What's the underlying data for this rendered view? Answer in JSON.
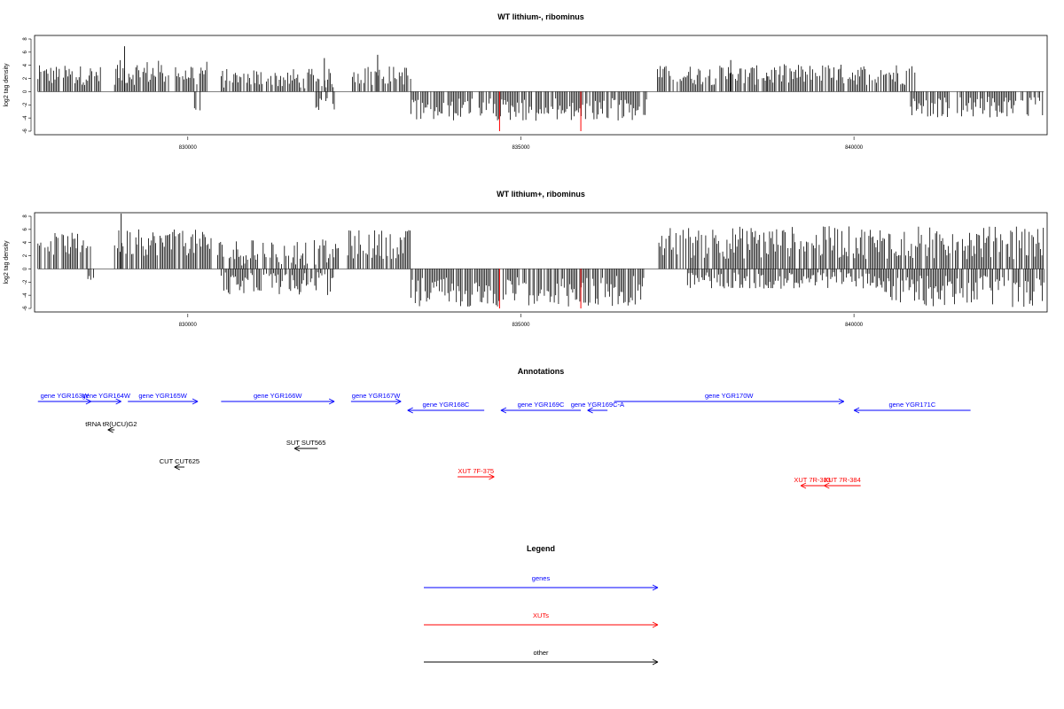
{
  "colors": {
    "genes": "#0000ff",
    "xuts": "#ff0000",
    "other": "#000000",
    "bar": "#000000",
    "highlight": "#ff0000"
  },
  "chart_data": [
    {
      "type": "bar",
      "title": "WT lithium-, ribominus",
      "ylabel": "log2 tag density",
      "xlim": [
        827700,
        842900
      ],
      "ylim": [
        -6,
        8
      ],
      "xticks": [
        830000,
        835000,
        840000
      ],
      "xtick_labels": [
        "830000",
        "835000",
        "840000"
      ],
      "yticks": [
        -6,
        -4,
        -2,
        0,
        2,
        4,
        6,
        8
      ],
      "ytick_labels": [
        "-6",
        "-4",
        "-2",
        "0",
        "2",
        "4",
        "6",
        "8"
      ],
      "series": [
        {
          "strand": "plus",
          "segments": [
            {
              "start": 827750,
              "end": 828700,
              "min": 1.0,
              "max": 4.0
            },
            {
              "start": 828900,
              "end": 830300,
              "min": 1.0,
              "max": 4.8,
              "peaks": [
                [
                  829050,
                  6.9
                ]
              ]
            },
            {
              "start": 830500,
              "end": 832200,
              "min": 0.5,
              "max": 3.5,
              "peaks": [
                [
                  832050,
                  5.1
                ]
              ]
            },
            {
              "start": 832450,
              "end": 833350,
              "min": 1.0,
              "max": 4.0,
              "peaks": [
                [
                  832850,
                  5.6
                ]
              ]
            },
            {
              "start": 837050,
              "end": 838700,
              "min": 1.0,
              "max": 4.0,
              "peaks": [
                [
                  838150,
                  4.8
                ]
              ]
            },
            {
              "start": 838700,
              "end": 840950,
              "min": 1.0,
              "max": 4.2
            }
          ]
        },
        {
          "strand": "minus",
          "segments": [
            {
              "start": 830100,
              "end": 830200,
              "min": -3.0,
              "max": -2.0
            },
            {
              "start": 831900,
              "end": 832200,
              "min": -3.0,
              "max": -1.0
            },
            {
              "start": 833350,
              "end": 836900,
              "min": -4.5,
              "max": -1.0
            },
            {
              "start": 840850,
              "end": 842850,
              "min": -4.0,
              "max": -0.8
            }
          ]
        }
      ],
      "highlight_bars": [
        {
          "x": 834680,
          "y": -6
        },
        {
          "x": 835900,
          "y": -6
        }
      ]
    },
    {
      "type": "bar",
      "title": "WT lithium+, ribominus",
      "ylabel": "log2 tag density",
      "xlim": [
        827700,
        842900
      ],
      "ylim": [
        -6,
        8
      ],
      "xticks": [
        830000,
        835000,
        840000
      ],
      "xtick_labels": [
        "830000",
        "835000",
        "840000"
      ],
      "yticks": [
        -6,
        -4,
        -2,
        0,
        2,
        4,
        6,
        8
      ],
      "ytick_labels": [
        "-6",
        "-4",
        "-2",
        "0",
        "2",
        "4",
        "6",
        "8"
      ],
      "series": [
        {
          "strand": "plus",
          "segments": [
            {
              "start": 827750,
              "end": 828550,
              "min": 2.0,
              "max": 5.5
            },
            {
              "start": 828900,
              "end": 830350,
              "min": 2.0,
              "max": 6.0,
              "peaks": [
                [
                  829000,
                  8.4
                ]
              ]
            },
            {
              "start": 830450,
              "end": 832300,
              "min": 0.5,
              "max": 4.5
            },
            {
              "start": 832400,
              "end": 833350,
              "min": 1.5,
              "max": 6.0
            },
            {
              "start": 837050,
              "end": 842850,
              "min": 1.5,
              "max": 6.5
            }
          ]
        },
        {
          "strand": "minus",
          "segments": [
            {
              "start": 828500,
              "end": 828600,
              "min": -2.0,
              "max": -1.0
            },
            {
              "start": 830500,
              "end": 832200,
              "min": -4.0,
              "max": -0.5
            },
            {
              "start": 833350,
              "end": 836850,
              "min": -5.8,
              "max": -1.0
            },
            {
              "start": 837500,
              "end": 840400,
              "min": -3.0,
              "max": -0.5
            },
            {
              "start": 840400,
              "end": 842850,
              "min": -5.8,
              "max": -1.0
            }
          ]
        }
      ],
      "highlight_bars": [
        {
          "x": 834680,
          "y": -6
        },
        {
          "x": 835900,
          "y": -6
        }
      ]
    }
  ],
  "annotations": {
    "title": "Annotations",
    "xlim": [
      827700,
      842900
    ],
    "features": [
      {
        "label": "gene YGR163W",
        "type": "gene",
        "strand": "+",
        "start": 827750,
        "end": 828550,
        "row": 1
      },
      {
        "label": "gene YGR164W",
        "type": "gene",
        "strand": "+",
        "start": 828550,
        "end": 829000,
        "row": 1
      },
      {
        "label": "gene YGR165W",
        "type": "gene",
        "strand": "+",
        "start": 829100,
        "end": 830150,
        "row": 1
      },
      {
        "label": "gene YGR166W",
        "type": "gene",
        "strand": "+",
        "start": 830500,
        "end": 832200,
        "row": 1
      },
      {
        "label": "gene YGR167W",
        "type": "gene",
        "strand": "+",
        "start": 832450,
        "end": 833200,
        "row": 1
      },
      {
        "label": "gene YGR168C",
        "type": "gene",
        "strand": "-",
        "start": 833300,
        "end": 834450,
        "row": 2
      },
      {
        "label": "gene YGR169C",
        "type": "gene",
        "strand": "-",
        "start": 834700,
        "end": 835900,
        "row": 2
      },
      {
        "label": "gene YGR169C-A",
        "type": "gene",
        "strand": "-",
        "start": 836000,
        "end": 836300,
        "row": 2
      },
      {
        "label": "gene YGR170W",
        "type": "gene",
        "strand": "+",
        "start": 836400,
        "end": 839850,
        "row": 1
      },
      {
        "label": "gene YGR171C",
        "type": "gene",
        "strand": "-",
        "start": 840000,
        "end": 841750,
        "row": 2
      },
      {
        "label": "tRNA tR(UCU)G2",
        "type": "other",
        "strand": "-",
        "start": 828800,
        "end": 828900,
        "row": 3
      },
      {
        "label": "SUT SUT565",
        "type": "other",
        "strand": "-",
        "start": 831600,
        "end": 831950,
        "row": 4
      },
      {
        "label": "CUT CUT625",
        "type": "other",
        "strand": "-",
        "start": 829800,
        "end": 829950,
        "row": 5
      },
      {
        "label": "XUT 7F-375",
        "type": "xut",
        "strand": "+",
        "start": 834050,
        "end": 834600,
        "row": 6
      },
      {
        "label": "XUT 7R-383",
        "type": "xut",
        "strand": "-",
        "start": 839200,
        "end": 839550,
        "row": 7
      },
      {
        "label": "XUT 7R-384",
        "type": "xut",
        "strand": "-",
        "start": 839550,
        "end": 840100,
        "row": 7
      }
    ]
  },
  "legend": {
    "title": "Legend",
    "items": [
      {
        "label": "genes",
        "type": "gene"
      },
      {
        "label": "XUTs",
        "type": "xut"
      },
      {
        "label": "other",
        "type": "other"
      }
    ]
  }
}
